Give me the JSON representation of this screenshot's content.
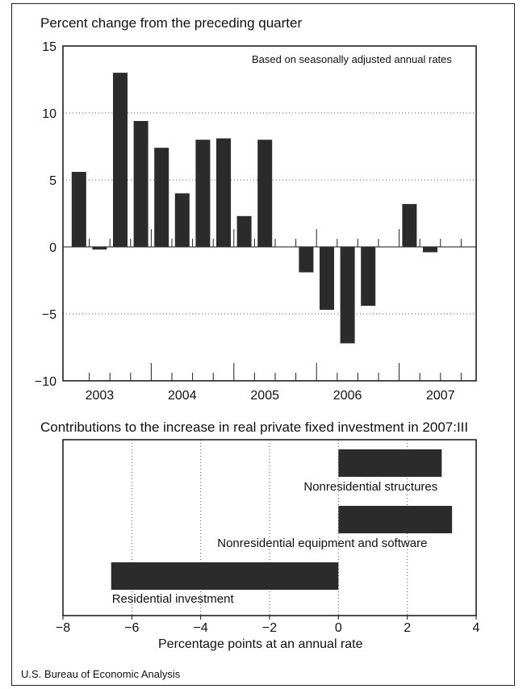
{
  "page": {
    "source": "U.S. Bureau of Economic Analysis"
  },
  "chart_data": [
    {
      "type": "bar",
      "title": "Percent change from the preceding quarter",
      "annotation": "Based on seasonally adjusted annual rates",
      "xlabel": "",
      "ylabel": "",
      "ylim": [
        -10,
        15
      ],
      "yticks": [
        15,
        10,
        5,
        0,
        -5,
        -10
      ],
      "grid": "horizontal dotted",
      "year_labels": [
        "2003",
        "2004",
        "2005",
        "2006",
        "2007"
      ],
      "categories": [
        "2003:I",
        "2003:II",
        "2003:III",
        "2003:IV",
        "2004:I",
        "2004:II",
        "2004:III",
        "2004:IV",
        "2005:I",
        "2005:II",
        "2005:III",
        "2005:IV",
        "2006:I",
        "2006:II",
        "2006:III",
        "2006:IV",
        "2007:I",
        "2007:II",
        "2007:III"
      ],
      "values": [
        5.6,
        -0.2,
        13.0,
        9.4,
        7.4,
        4.0,
        8.0,
        8.1,
        2.3,
        8.0,
        0.0,
        -1.9,
        -4.7,
        -7.2,
        -4.4,
        0.0,
        3.2,
        -0.4,
        0.0
      ],
      "bar_color": "#2b2b2b"
    },
    {
      "type": "bar",
      "orientation": "horizontal",
      "title": "Contributions to the increase in real private fixed investment in 2007:III",
      "xlabel": "Percentage points at an annual rate",
      "ylabel": "",
      "xlim": [
        -8,
        4
      ],
      "xticks": [
        -8,
        -6,
        -4,
        -2,
        0,
        2,
        4
      ],
      "xtick_labels": [
        "−8",
        "−6",
        "−4",
        "−2",
        "0",
        "2",
        "4"
      ],
      "grid": "vertical dotted",
      "categories": [
        "Nonresidential structures",
        "Nonresidential equipment and software",
        "Residential investment"
      ],
      "values": [
        3.0,
        3.3,
        -6.6
      ],
      "bar_color": "#2b2b2b"
    }
  ]
}
